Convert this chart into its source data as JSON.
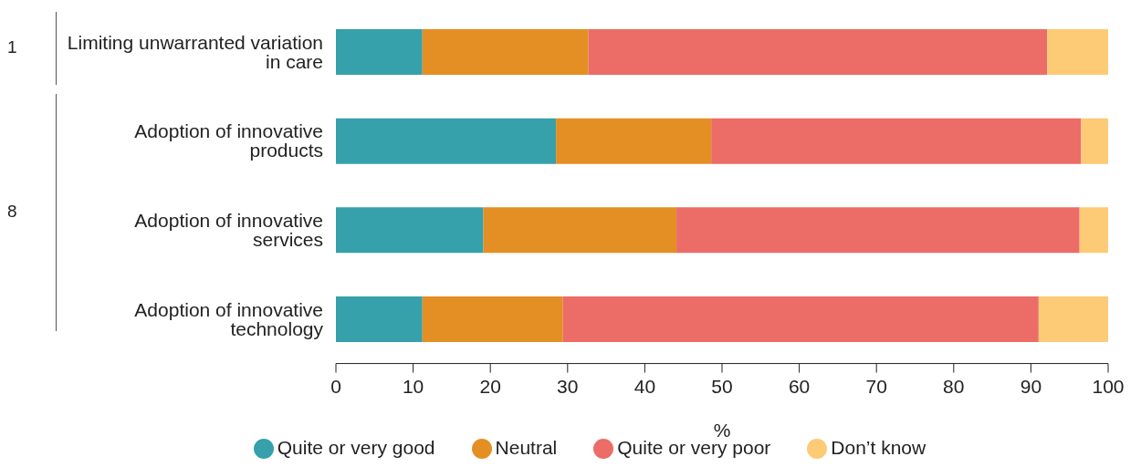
{
  "chart_data": {
    "type": "bar",
    "orientation": "horizontal",
    "stacked": true,
    "categories": [
      "Limiting unwarranted variation in care",
      "Adoption of innovative products",
      "Adoption of innovative services",
      "Adoption of innovative technology"
    ],
    "series": [
      {
        "name": "Quite or very good",
        "color": "#36a0ab",
        "values": [
          11.2,
          28.5,
          19.1,
          11.2
        ]
      },
      {
        "name": "Neutral",
        "color": "#e38f24",
        "values": [
          21.5,
          20.1,
          25.0,
          18.2
        ]
      },
      {
        "name": "Quite or very poor",
        "color": "#ec6c67",
        "values": [
          59.4,
          47.9,
          52.2,
          61.6
        ]
      },
      {
        "name": "Don’t know",
        "color": "#fdca76",
        "values": [
          7.9,
          3.5,
          3.7,
          9.0
        ]
      }
    ],
    "xlabel": "%",
    "xlim": [
      0,
      100
    ],
    "xticks": [
      0,
      10,
      20,
      30,
      40,
      50,
      60,
      70,
      80,
      90,
      100
    ],
    "grid": false,
    "legend": "bottom",
    "annotations": [
      "1",
      "8"
    ]
  }
}
